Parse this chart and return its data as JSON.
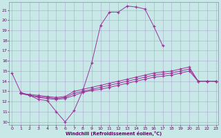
{
  "xlabel": "Windchill (Refroidissement éolien,°C)",
  "bg_color": "#c8e8e8",
  "grid_color": "#aaaacc",
  "line_color": "#993399",
  "xlim": [
    -0.3,
    23.3
  ],
  "ylim": [
    9.7,
    21.8
  ],
  "ytick_vals": [
    10,
    11,
    12,
    13,
    14,
    15,
    16,
    17,
    18,
    19,
    20,
    21
  ],
  "xtick_vals": [
    0,
    1,
    2,
    3,
    4,
    5,
    6,
    7,
    8,
    9,
    10,
    11,
    12,
    13,
    14,
    15,
    16,
    17,
    18,
    19,
    20,
    21,
    22,
    23
  ],
  "line1_x": [
    0,
    1,
    2,
    3,
    4,
    5,
    6,
    7,
    8,
    9,
    10,
    11,
    12,
    13,
    14,
    15,
    16,
    17
  ],
  "line1_y": [
    14.8,
    12.9,
    12.6,
    12.2,
    12.1,
    11.0,
    10.0,
    11.1,
    13.1,
    15.8,
    19.5,
    20.8,
    20.8,
    21.4,
    21.3,
    21.1,
    19.4,
    17.5
  ],
  "line2_x": [
    1,
    2,
    3,
    4,
    5,
    6,
    7,
    8,
    9,
    10,
    11,
    12,
    13,
    14,
    15,
    16,
    17,
    18,
    19,
    20,
    21,
    22,
    23
  ],
  "line2_y": [
    12.8,
    12.7,
    12.6,
    12.5,
    12.4,
    12.5,
    13.0,
    13.2,
    13.4,
    13.6,
    13.8,
    14.0,
    14.2,
    14.4,
    14.6,
    14.8,
    14.9,
    15.0,
    15.2,
    15.4,
    14.0,
    14.0,
    14.0
  ],
  "line3_x": [
    1,
    2,
    3,
    4,
    5,
    6,
    7,
    8,
    9,
    10,
    11,
    12,
    13,
    14,
    15,
    16,
    17,
    18,
    19,
    20,
    21,
    22,
    23
  ],
  "line3_y": [
    12.8,
    12.6,
    12.5,
    12.4,
    12.3,
    12.4,
    12.8,
    13.0,
    13.2,
    13.4,
    13.6,
    13.8,
    14.0,
    14.2,
    14.4,
    14.6,
    14.7,
    14.8,
    15.0,
    15.2,
    14.0,
    14.0,
    14.0
  ],
  "line4_x": [
    1,
    2,
    3,
    4,
    5,
    6,
    7,
    8,
    9,
    10,
    11,
    12,
    13,
    14,
    15,
    16,
    17,
    18,
    19,
    20,
    21,
    22,
    23
  ],
  "line4_y": [
    12.8,
    12.6,
    12.4,
    12.3,
    12.2,
    12.3,
    12.6,
    12.9,
    13.1,
    13.2,
    13.4,
    13.6,
    13.8,
    14.0,
    14.2,
    14.4,
    14.5,
    14.6,
    14.8,
    15.0,
    14.0,
    14.0,
    14.0
  ]
}
